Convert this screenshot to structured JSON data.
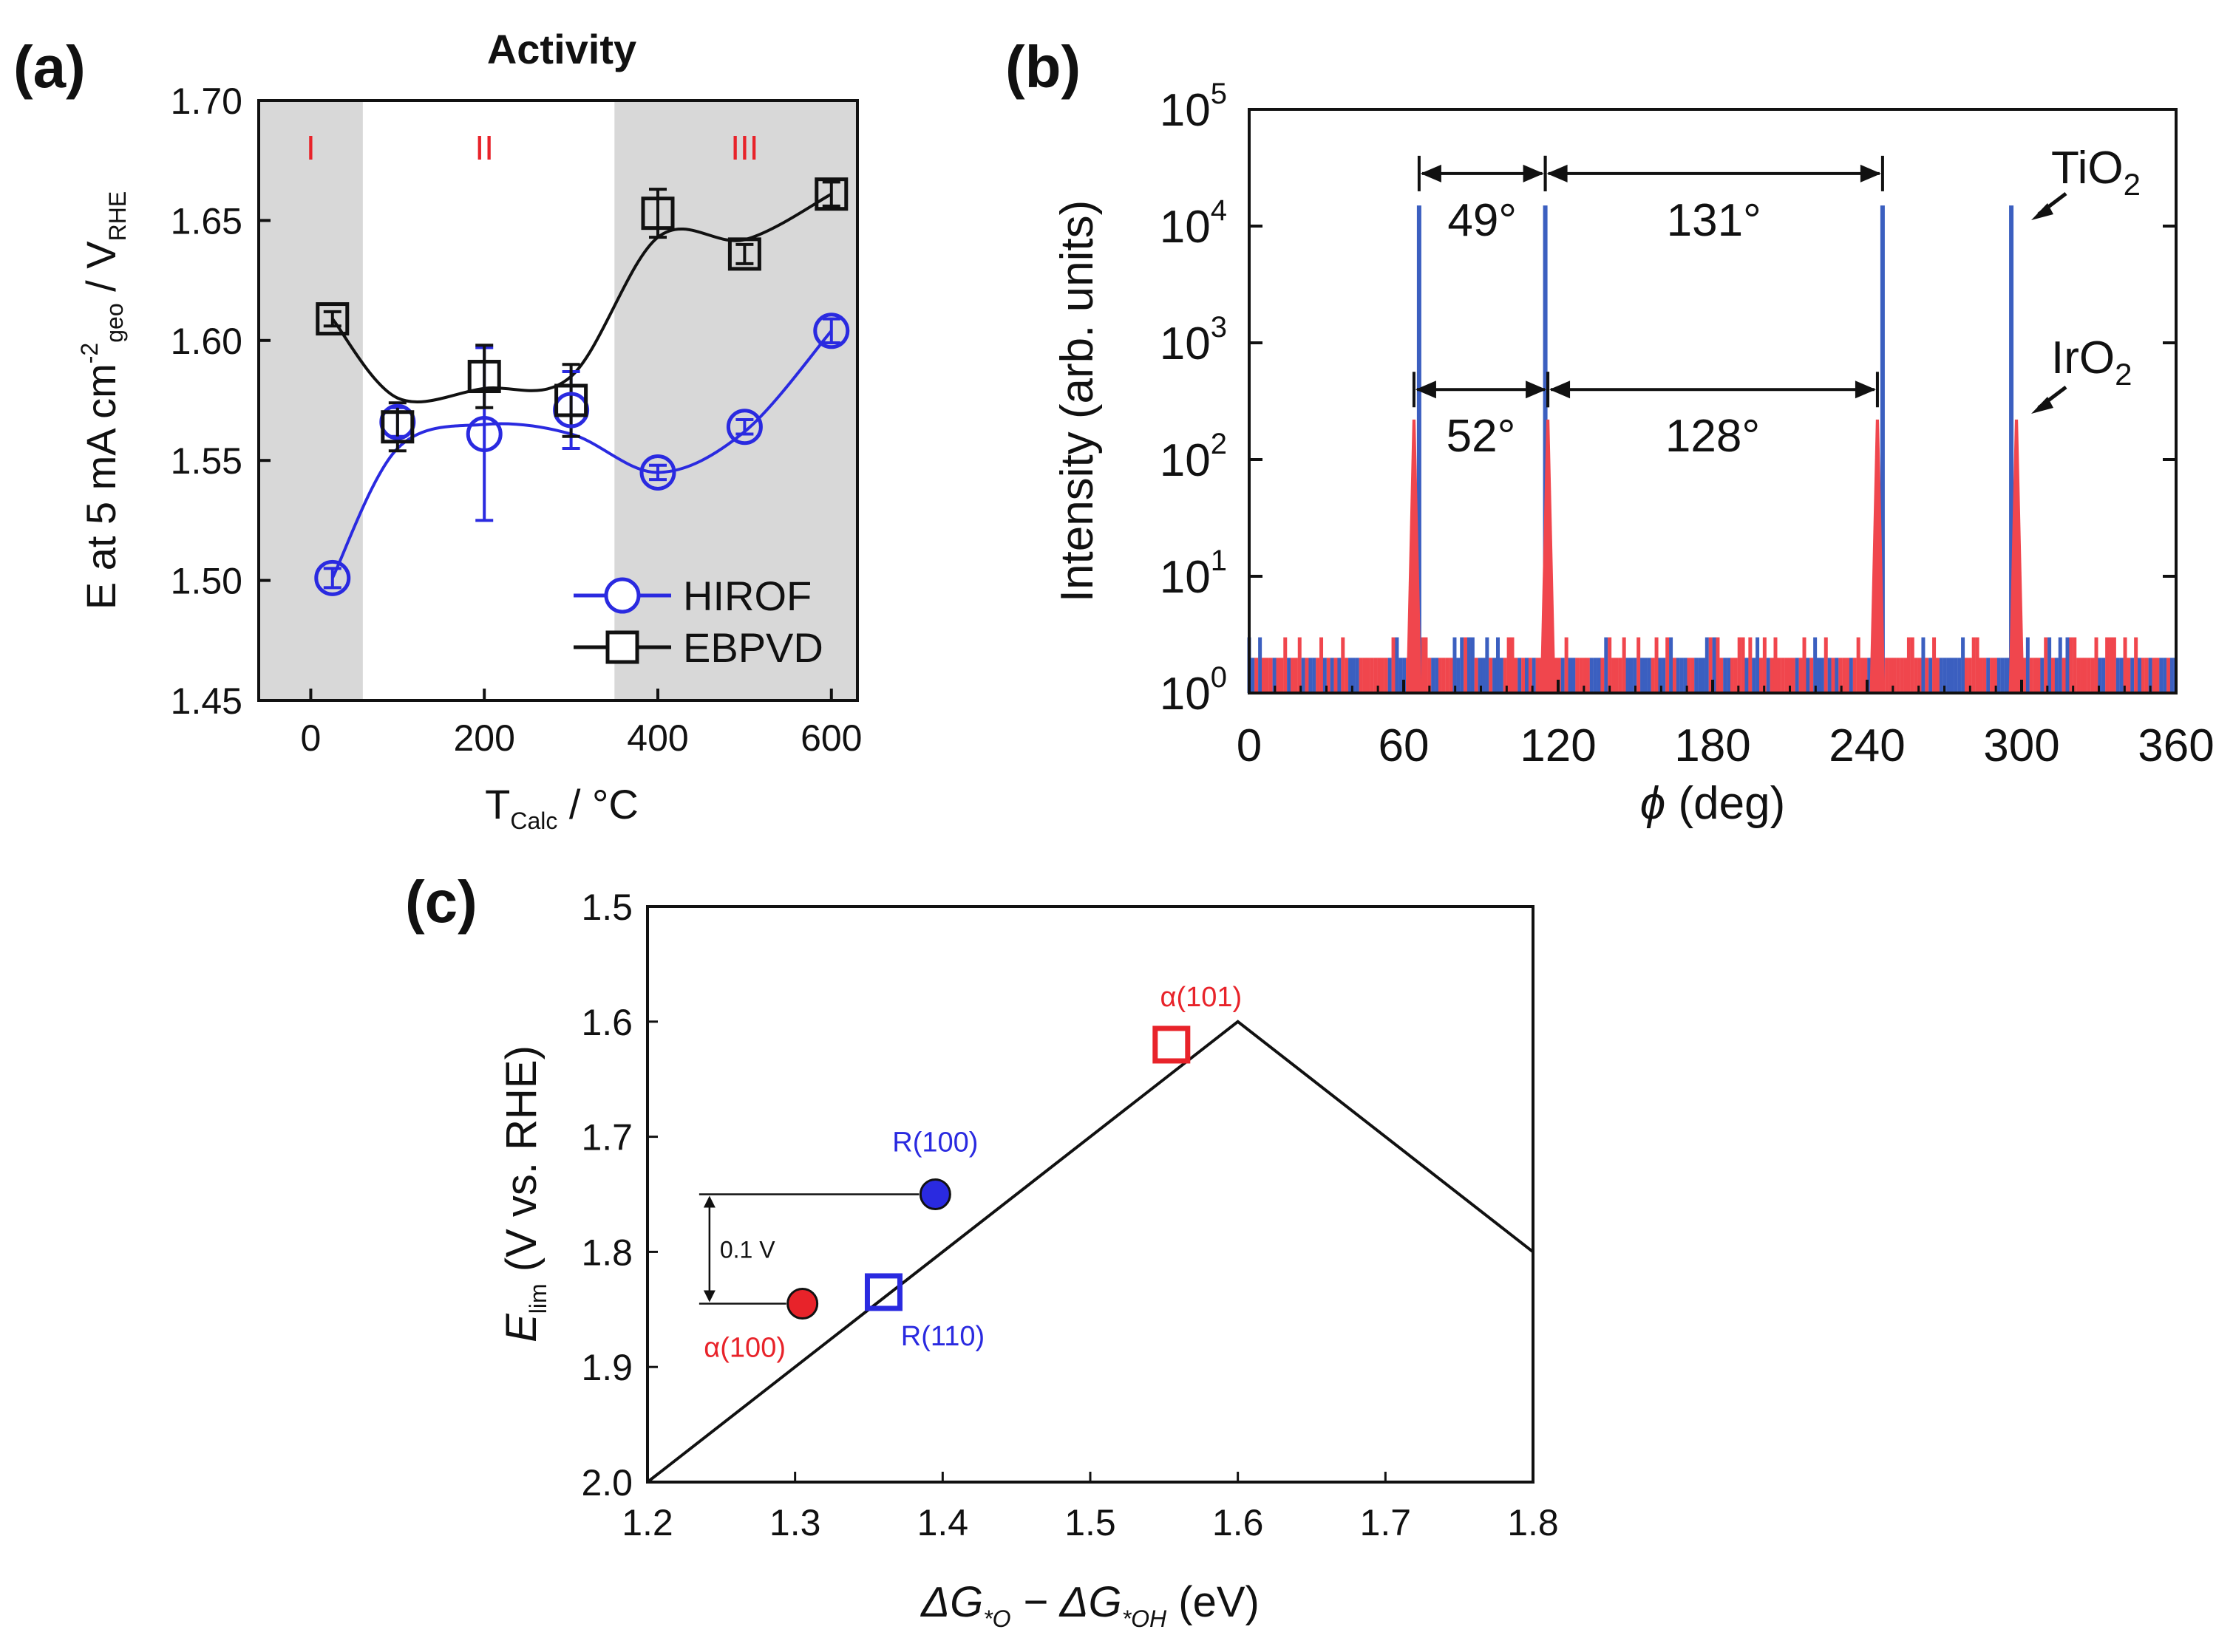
{
  "colors": {
    "blue": "#2a2ae0",
    "black": "#111111",
    "red": "#e8232a",
    "phi_blue": "#3b5fc0",
    "phi_red": "#f0464d",
    "shade": "#d8d8d8"
  },
  "chart_data": [
    {
      "panel": "(a)",
      "type": "line",
      "title": "Activity",
      "xlabel": {
        "main": "T",
        "sub": "Calc",
        "rest": " / °C"
      },
      "ylabel": {
        "p1": "E at 5 mA cm",
        "sup": "-2",
        "p2": "geo",
        "p3": " / V",
        "p4": "RHE"
      },
      "xlim": [
        -60,
        630
      ],
      "ylim": [
        1.45,
        1.7
      ],
      "xticks": [
        0,
        200,
        400,
        600
      ],
      "xtick_labels": [
        "0",
        "200",
        "400",
        "600"
      ],
      "yticks": [
        1.45,
        1.5,
        1.55,
        1.6,
        1.65,
        1.7
      ],
      "ytick_labels": [
        "1.45",
        "1.50",
        "1.55",
        "1.60",
        "1.65",
        "1.70"
      ],
      "regions": [
        {
          "label": "I",
          "from": -60,
          "to": 60,
          "shaded": true,
          "label_x": 0
        },
        {
          "label": "II",
          "from": 60,
          "to": 350,
          "shaded": false,
          "label_x": 200
        },
        {
          "label": "III",
          "from": 350,
          "to": 630,
          "shaded": true,
          "label_x": 500
        }
      ],
      "series": [
        {
          "name": "HIROF",
          "marker": "circle",
          "color": "blue",
          "x": [
            25,
            100,
            200,
            300,
            400,
            500,
            600
          ],
          "y": [
            1.501,
            1.566,
            1.561,
            1.571,
            1.545,
            1.564,
            1.604
          ],
          "err": [
            0.004,
            0.006,
            0.036,
            0.016,
            0.003,
            0.003,
            0.005
          ],
          "fit": [
            [
              25,
              1.501
            ],
            [
              100,
              1.555
            ],
            [
              200,
              1.565
            ],
            [
              300,
              1.561
            ],
            [
              400,
              1.545
            ],
            [
              500,
              1.562
            ],
            [
              600,
              1.604
            ]
          ]
        },
        {
          "name": "EBPVD",
          "marker": "square",
          "color": "black",
          "x": [
            25,
            100,
            200,
            300,
            400,
            500,
            600
          ],
          "y": [
            1.609,
            1.564,
            1.585,
            1.575,
            1.653,
            1.636,
            1.661
          ],
          "err": [
            0.003,
            0.01,
            0.013,
            0.015,
            0.01,
            0.004,
            0.005
          ],
          "fit": [
            [
              25,
              1.609
            ],
            [
              100,
              1.576
            ],
            [
              200,
              1.58
            ],
            [
              300,
              1.585
            ],
            [
              400,
              1.643
            ],
            [
              500,
              1.642
            ],
            [
              600,
              1.661
            ]
          ]
        }
      ],
      "legend": {
        "placement": "lower-right",
        "entries": [
          "HIROF",
          "EBPVD"
        ]
      }
    },
    {
      "panel": "(b)",
      "type": "line",
      "xlabel": {
        "sym": "ϕ",
        "rest": " (deg)"
      },
      "ylabel": "Intensity (arb. units)",
      "yscale": "log",
      "xlim": [
        0,
        360
      ],
      "ylim_exp": [
        0,
        5
      ],
      "xticks": [
        0,
        60,
        120,
        180,
        240,
        300,
        360
      ],
      "xtick_labels": [
        "0",
        "60",
        "120",
        "180",
        "240",
        "300",
        "360"
      ],
      "yticks_exp": [
        0,
        1,
        2,
        3,
        4,
        5
      ],
      "ytick_labels": [
        "0",
        "1",
        "2",
        "3",
        "4",
        "5"
      ],
      "ytick_base": "10",
      "series": [
        {
          "name": "TiO2",
          "color": "phi_blue",
          "peaks_deg": [
            66,
            115,
            246,
            296
          ],
          "peak_intensity": 15000
        },
        {
          "name": "IrO2",
          "color": "phi_red",
          "peaks_deg": [
            64,
            116,
            244,
            298
          ],
          "peak_intensity": 220
        }
      ],
      "labels": {
        "tio2": {
          "main": "TiO",
          "sub": "2"
        },
        "iro2": {
          "main": "IrO",
          "sub": "2"
        }
      },
      "annotations": [
        {
          "text": "49°",
          "from": 66,
          "to": 115,
          "y_exp": 4.45
        },
        {
          "text": "131°",
          "from": 115,
          "to": 246,
          "y_exp": 4.45
        },
        {
          "text": "52°",
          "from": 64,
          "to": 116,
          "y_exp": 2.6
        },
        {
          "text": "128°",
          "from": 116,
          "to": 244,
          "y_exp": 2.6
        }
      ]
    },
    {
      "panel": "(c)",
      "type": "scatter",
      "xlabel": {
        "p1": "ΔG",
        "s1": "*O",
        "p2": " − ΔG",
        "s2": "*OH",
        "p3": " (eV)"
      },
      "ylabel": {
        "p1": "E",
        "sub": "lim",
        "p2": " (V vs. RHE)"
      },
      "xlim": [
        1.2,
        1.8
      ],
      "ylim": [
        2.0,
        1.5
      ],
      "y_inverted": true,
      "xticks": [
        1.2,
        1.3,
        1.4,
        1.5,
        1.6,
        1.7,
        1.8
      ],
      "xtick_labels": [
        "1.2",
        "1.3",
        "1.4",
        "1.5",
        "1.6",
        "1.7",
        "1.8"
      ],
      "yticks": [
        1.5,
        1.6,
        1.7,
        1.8,
        1.9,
        2.0
      ],
      "ytick_labels": [
        "1.5",
        "1.6",
        "1.7",
        "1.8",
        "1.9",
        "2.0"
      ],
      "volcano_line": [
        [
          1.2,
          2.0
        ],
        [
          1.6,
          1.6
        ],
        [
          1.8,
          1.8
        ]
      ],
      "points": [
        {
          "label": "α(100)",
          "x": 1.305,
          "y": 1.845,
          "marker": "circle",
          "color": "red",
          "filled": true
        },
        {
          "label": "R(100)",
          "x": 1.395,
          "y": 1.75,
          "marker": "circle",
          "color": "blue",
          "filled": true
        },
        {
          "label": "R(110)",
          "x": 1.36,
          "y": 1.835,
          "marker": "square",
          "color": "blue",
          "filled": false
        },
        {
          "label": "α(101)",
          "x": 1.555,
          "y": 1.62,
          "marker": "square",
          "color": "red",
          "filled": false
        }
      ],
      "bracket": {
        "text": "0.1 V",
        "from_y": 1.75,
        "to_y": 1.845,
        "x": 1.25
      }
    }
  ]
}
